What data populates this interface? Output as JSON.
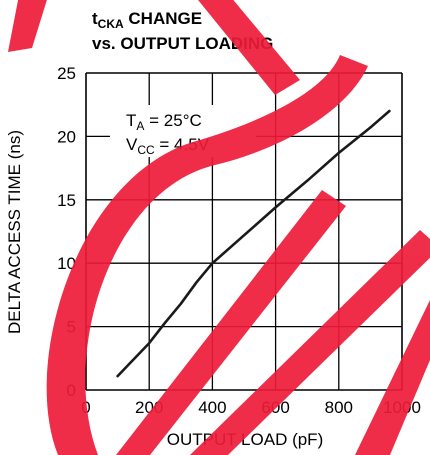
{
  "chart_data": {
    "type": "line",
    "title": {
      "line1": {
        "prefix": "t",
        "subscript": "CKA",
        "suffix": " CHANGE"
      },
      "line2": "vs. OUTPUT LOADING"
    },
    "xlabel": "OUTPUT LOAD (pF)",
    "ylabel": "DELTA ACCESS TIME (ns)",
    "xlim": [
      0,
      1000
    ],
    "ylim": [
      0,
      25
    ],
    "xticks": [
      0,
      200,
      400,
      600,
      800,
      1000
    ],
    "yticks": [
      0,
      5,
      10,
      15,
      20,
      25
    ],
    "xtick_labels": [
      "0",
      "200",
      "400",
      "600",
      "800",
      "1000"
    ],
    "ytick_labels": [
      "0",
      "5",
      "10",
      "15",
      "20",
      "25"
    ],
    "grid": true,
    "annotation": {
      "line1": {
        "base": "T",
        "subscript": "A",
        "rest": " = 25°C"
      },
      "line2": {
        "base": "V",
        "subscript": "CC",
        "rest": " = 4.5V"
      }
    },
    "series": [
      {
        "x": [
          100,
          150,
          200,
          250,
          300,
          350,
          400,
          500,
          600,
          700,
          800,
          900,
          960
        ],
        "y": [
          1.1,
          2.4,
          3.7,
          5.3,
          6.8,
          8.5,
          10.0,
          12.2,
          14.4,
          16.5,
          18.7,
          20.7,
          22.0
        ]
      }
    ],
    "colors": {
      "line": "#1a1a1a",
      "grid": "#000000",
      "watermark": "#ee1c3a"
    }
  }
}
